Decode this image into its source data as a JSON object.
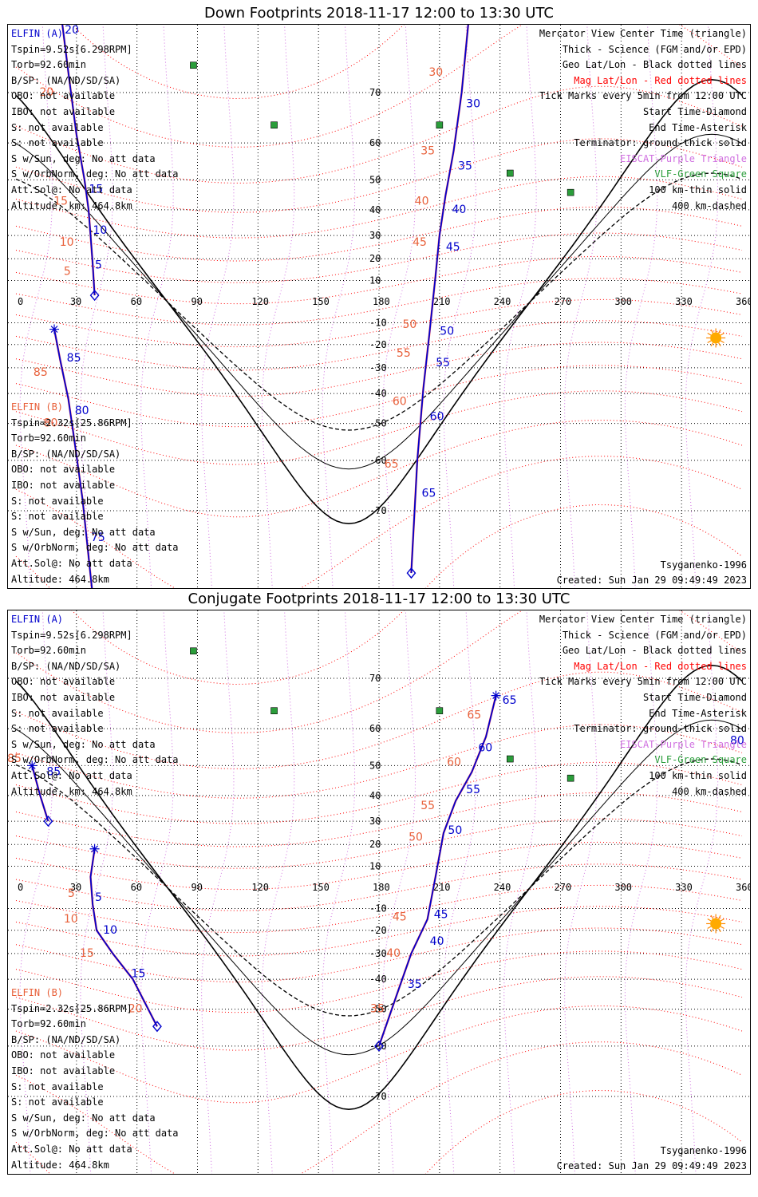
{
  "colors": {
    "elfin_a": "#0000cc",
    "elfin_b_label": "#e8603a",
    "mag_grid": "#ff0000",
    "eiscat": "#d070e0",
    "vlf": "#2a9d3a",
    "sun": "#ffaa00"
  },
  "panels": [
    {
      "title": "Down Footprints 2018-11-17 12:00 to 13:30 UTC",
      "info_a": [
        "ELFIN (A)",
        "Tspin=9.52s[6.298RPM]",
        "Torb=92.60min",
        "B/SP: (NA/ND/SD/SA)",
        "OBO: not available",
        "IBO: not available",
        "S: not available",
        "S: not available",
        "S w/Sun, deg: No att data",
        "S w/OrbNorm, deg: No att data",
        "Att.Sol@: No att data",
        "Altitude, km: 464.8km"
      ],
      "info_b": [
        "ELFIN (B)",
        "Tspin=2.32s[25.86RPM]",
        "Torb=92.60min",
        "B/SP: (NA/ND/SD/SA)",
        "OBO: not available",
        "IBO: not available",
        "S: not available",
        "S: not available",
        "S w/Sun, deg: No att data",
        "S w/OrbNorm, deg: No att data",
        "Att.Sol@: No att data",
        "Altitude: 464.8km"
      ],
      "footer_model": "Tsyganenko-1996",
      "footer_created": "Created: Sun Jan 29 09:49:49 2023"
    },
    {
      "title": "Conjugate Footprints 2018-11-17 12:00 to 13:30 UTC",
      "info_a": [
        "ELFIN (A)",
        "Tspin=9.52s[6.298RPM]",
        "Torb=92.60min",
        "B/SP: (NA/ND/SD/SA)",
        "OBO: not available",
        "IBO: not available",
        "S: not available",
        "S: not available",
        "S w/Sun, deg: No att data",
        "S w/OrbNorm, deg: No att data",
        "Att.Sol@: No att data",
        "Altitude, km: 464.8km"
      ],
      "info_b": [
        "ELFIN (B)",
        "Tspin=2.32s[25.86RPM]",
        "Torb=92.60min",
        "B/SP: (NA/ND/SD/SA)",
        "OBO: not available",
        "IBO: not available",
        "S: not available",
        "S: not available",
        "S w/Sun, deg: No att data",
        "S w/OrbNorm, deg: No att data",
        "Att.Sol@: No att data",
        "Altitude: 464.8km"
      ],
      "footer_model": "Tsyganenko-1996",
      "footer_created": "Created: Sun Jan 29 09:49:49 2023"
    }
  ],
  "legend": [
    {
      "text": "Mercator View Center Time (triangle)",
      "color": "#000000"
    },
    {
      "text": "Thick - Science (FGM and/or EPD)",
      "color": "#000000"
    },
    {
      "text": "Geo Lat/Lon - Black dotted lines",
      "color": "#000000"
    },
    {
      "text": "Mag Lat/Lon - Red dotted lines",
      "color": "#ff0000"
    },
    {
      "text": "Tick Marks every 5min from 12:00 UTC",
      "color": "#000000"
    },
    {
      "text": "Start Time-Diamond",
      "color": "#000000"
    },
    {
      "text": "End Time-Asterisk",
      "color": "#000000"
    },
    {
      "text": "Terminator: ground-thick solid",
      "color": "#000000"
    },
    {
      "text": "EISCAT-Purple Triangle",
      "color": "#d070e0"
    },
    {
      "text": "VLF-Green Square",
      "color": "#2a9d3a"
    },
    {
      "text": "100 km-thin solid",
      "color": "#000000"
    },
    {
      "text": "400 km-dashed",
      "color": "#000000"
    }
  ],
  "chart_data": [
    {
      "type": "map",
      "projection": "mercator",
      "x_ticks": [
        0,
        30,
        60,
        90,
        120,
        150,
        180,
        210,
        240,
        270,
        300,
        330,
        360
      ],
      "y_ticks": [
        70,
        60,
        50,
        40,
        30,
        20,
        10,
        -10,
        -20,
        -30,
        -40,
        -50,
        -60,
        -70
      ],
      "x_tick_labels": [
        "0",
        "30",
        "60",
        "90",
        "120",
        "150",
        "180",
        "210",
        "240",
        "270",
        "300",
        "330",
        "360"
      ],
      "y_tick_labels": [
        "70",
        "60",
        "50",
        "40",
        "30",
        "20",
        "10",
        "-10",
        "-20",
        "-30",
        "-40",
        "-50",
        "-60",
        "-70"
      ],
      "xlim": [
        0,
        360
      ],
      "ylim": [
        -80,
        80
      ],
      "sun": {
        "lon": 347,
        "lat": -17
      },
      "vlf_stations": [
        [
          88,
          74
        ],
        [
          128,
          64
        ],
        [
          210,
          64
        ],
        [
          245,
          52
        ],
        [
          275,
          46
        ]
      ],
      "series": [
        {
          "name": "ELFIN (A)",
          "color": "#0000cc",
          "lonlat": [
            [
              22,
              80
            ],
            [
              26,
              73
            ],
            [
              30,
              62
            ],
            [
              34,
              50
            ],
            [
              36,
              40
            ],
            [
              37,
              30
            ],
            [
              38,
              18
            ],
            [
              39,
              3
            ]
          ],
          "ticks": [
            {
              "lon": 23,
              "lat": 78,
              "label": "20"
            },
            {
              "lon": 35,
              "lat": 47,
              "label": "15"
            },
            {
              "lon": 37,
              "lat": 32,
              "label": "10"
            },
            {
              "lon": 38,
              "lat": 17,
              "label": "5"
            }
          ],
          "mag_ticks": [
            {
              "lon": 18,
              "lat": 70,
              "label": "20"
            },
            {
              "lon": 25,
              "lat": 43,
              "label": "15"
            },
            {
              "lon": 28,
              "lat": 27,
              "label": "10"
            },
            {
              "lon": 30,
              "lat": 14,
              "label": "5"
            }
          ]
        },
        {
          "name": "ELFIN (B)",
          "color": "#0000cc",
          "lonlat": [
            [
              19,
              -13
            ],
            [
              22,
              -27
            ],
            [
              26,
              -42
            ],
            [
              29,
              -55
            ],
            [
              33,
              -68
            ],
            [
              38,
              -80
            ]
          ],
          "ticks": [
            {
              "lon": 24,
              "lat": -26,
              "label": "85"
            },
            {
              "lon": 28,
              "lat": -46,
              "label": "80"
            },
            {
              "lon": 36,
              "lat": -74,
              "label": "75"
            }
          ],
          "mag_ticks": [
            {
              "lon": 15,
              "lat": -32,
              "label": "85"
            },
            {
              "lon": 20,
              "lat": -50,
              "label": "80"
            }
          ]
        },
        {
          "name": "ELFIN (A) pass 2",
          "color": "#0000cc",
          "lonlat": [
            [
              225,
              80
            ],
            [
              221,
              70
            ],
            [
              217,
              58
            ],
            [
              213,
              45
            ],
            [
              210,
              30
            ],
            [
              208,
              12
            ],
            [
              205,
              -15
            ],
            [
              202,
              -38
            ],
            [
              199,
              -60
            ],
            [
              196,
              -78
            ]
          ],
          "ticks": [
            {
              "lon": 222,
              "lat": 68,
              "label": "30"
            },
            {
              "lon": 218,
              "lat": 54,
              "label": "35"
            },
            {
              "lon": 215,
              "lat": 40,
              "label": "40"
            },
            {
              "lon": 212,
              "lat": 25,
              "label": "45"
            },
            {
              "lon": 209,
              "lat": -14,
              "label": "50"
            },
            {
              "lon": 207,
              "lat": -28,
              "label": "55"
            },
            {
              "lon": 204,
              "lat": -48,
              "label": "60"
            },
            {
              "lon": 200,
              "lat": -67,
              "label": "65"
            }
          ],
          "mag_ticks": [
            {
              "lon": 211,
              "lat": 73,
              "label": "30"
            },
            {
              "lon": 207,
              "lat": 58,
              "label": "35"
            },
            {
              "lon": 204,
              "lat": 43,
              "label": "40"
            },
            {
              "lon": 203,
              "lat": 27,
              "label": "45"
            },
            {
              "lon": 198,
              "lat": -11,
              "label": "50"
            },
            {
              "lon": 195,
              "lat": -24,
              "label": "55"
            },
            {
              "lon": 193,
              "lat": -43,
              "label": "60"
            },
            {
              "lon": 189,
              "lat": -61,
              "label": "65"
            }
          ]
        }
      ]
    },
    {
      "type": "map",
      "projection": "mercator",
      "x_ticks": [
        0,
        30,
        60,
        90,
        120,
        150,
        180,
        210,
        240,
        270,
        300,
        330,
        360
      ],
      "y_ticks": [
        70,
        60,
        50,
        40,
        30,
        20,
        10,
        -10,
        -20,
        -30,
        -40,
        -50,
        -60,
        -70
      ],
      "x_tick_labels": [
        "0",
        "30",
        "60",
        "90",
        "120",
        "150",
        "180",
        "210",
        "240",
        "270",
        "300",
        "330",
        "360"
      ],
      "y_tick_labels": [
        "70",
        "60",
        "50",
        "40",
        "30",
        "20",
        "10",
        "-10",
        "-20",
        "-30",
        "-40",
        "-50",
        "-60",
        "-70"
      ],
      "xlim": [
        0,
        360
      ],
      "ylim": [
        -80,
        80
      ],
      "sun": {
        "lon": 347,
        "lat": -17
      },
      "vlf_stations": [
        [
          88,
          74
        ],
        [
          128,
          64
        ],
        [
          210,
          64
        ],
        [
          245,
          52
        ],
        [
          275,
          46
        ]
      ],
      "series": [
        {
          "name": "ELFIN (A) conj",
          "color": "#0000cc",
          "lonlat": [
            [
              39,
              18
            ],
            [
              37,
              5
            ],
            [
              38,
              -8
            ],
            [
              40,
              -20
            ],
            [
              48,
              -30
            ],
            [
              58,
              -40
            ],
            [
              70,
              -55
            ]
          ],
          "ticks": [
            {
              "lon": 38,
              "lat": -5,
              "label": "5"
            },
            {
              "lon": 42,
              "lat": -20,
              "label": "10"
            },
            {
              "lon": 56,
              "lat": -38,
              "label": "15"
            }
          ],
          "mag_ticks": [
            {
              "lon": 32,
              "lat": -3,
              "label": "5"
            },
            {
              "lon": 30,
              "lat": -15,
              "label": "10"
            },
            {
              "lon": 38,
              "lat": -30,
              "label": "15"
            },
            {
              "lon": 62,
              "lat": -50,
              "label": "20"
            }
          ]
        },
        {
          "name": "ELFIN (B) conj",
          "color": "#0000cc",
          "lonlat": [
            [
              8,
              50
            ],
            [
              12,
              40
            ],
            [
              16,
              30
            ]
          ],
          "ticks": [
            {
              "lon": 14,
              "lat": 48,
              "label": "85"
            }
          ],
          "mag_ticks": [
            {
              "lon": 2,
              "lat": 52,
              "label": "85"
            }
          ]
        },
        {
          "name": "ELFIN (A) conj pass 2",
          "color": "#0000cc",
          "lonlat": [
            [
              238,
              67
            ],
            [
              233,
              58
            ],
            [
              226,
              48
            ],
            [
              218,
              38
            ],
            [
              212,
              25
            ],
            [
              208,
              5
            ],
            [
              204,
              -15
            ],
            [
              196,
              -30
            ],
            [
              189,
              -45
            ],
            [
              180,
              -60
            ]
          ],
          "ticks": [
            {
              "lon": 240,
              "lat": 66,
              "label": "65"
            },
            {
              "lon": 228,
              "lat": 55,
              "label": "60"
            },
            {
              "lon": 222,
              "lat": 42,
              "label": "55"
            },
            {
              "lon": 213,
              "lat": 26,
              "label": "50"
            },
            {
              "lon": 206,
              "lat": -13,
              "label": "45"
            },
            {
              "lon": 204,
              "lat": -25,
              "label": "40"
            },
            {
              "lon": 193,
              "lat": -42,
              "label": "35"
            }
          ],
          "mag_ticks": [
            {
              "lon": 230,
              "lat": 63,
              "label": "65"
            },
            {
              "lon": 220,
              "lat": 51,
              "label": "60"
            },
            {
              "lon": 207,
              "lat": 36,
              "label": "55"
            },
            {
              "lon": 201,
              "lat": 23,
              "label": "50"
            },
            {
              "lon": 193,
              "lat": -14,
              "label": "45"
            },
            {
              "lon": 190,
              "lat": -30,
              "label": "40"
            },
            {
              "lon": 182,
              "lat": -50,
              "label": "35"
            }
          ],
          "trailing_right": {
            "lon": 358,
            "lat": 57,
            "label": "80"
          }
        }
      ]
    }
  ]
}
